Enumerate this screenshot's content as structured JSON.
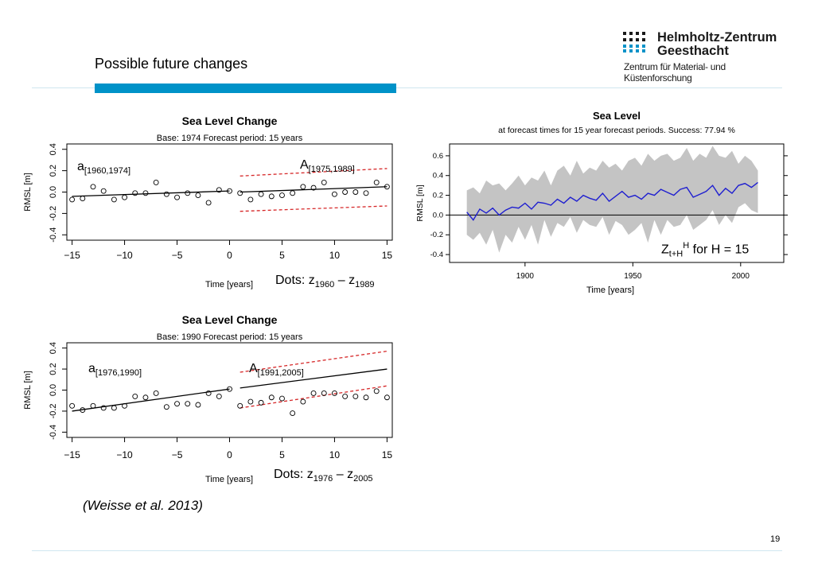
{
  "slide": {
    "title": "Possible future changes",
    "citation": "(Weisse et al. 2013)",
    "page_number": "19"
  },
  "logo": {
    "line1": "Helmholtz-Zentrum",
    "line2": "Geesthacht",
    "line3": "Zentrum für Material- und Küstenforschung",
    "icon": "helmholtz-dots-logo"
  },
  "colors": {
    "accent": "#0092c8",
    "forecast_band": "#d62728",
    "sea_level_line": "#1f1fd0",
    "uncertainty_band": "#c4c4c4"
  },
  "annotations": {
    "chart1_a_main": "a",
    "chart1_a_sub": "[1960,1974]",
    "chart1_A_main": "A",
    "chart1_A_sub": "[1975,1989]",
    "chart1_dots_prefix": "Dots: z",
    "chart1_dots_sub1": "1960",
    "chart1_dots_mid": " – z",
    "chart1_dots_sub2": "1989",
    "chart2_a_main": "a",
    "chart2_a_sub": "[1976,1990]",
    "chart2_A_main": "A",
    "chart2_A_sub": "[1991,2005]",
    "chart2_dots_prefix": "Dots: z",
    "chart2_dots_sub1": "1976",
    "chart2_dots_mid": " – z",
    "chart2_dots_sub2": "2005",
    "chart3_z_main": "Z",
    "chart3_z_sub": "t+H",
    "chart3_z_sup": "H",
    "chart3_z_rest": "  for H = 15"
  },
  "chart_data": [
    {
      "type": "scatter",
      "title": "Sea Level Change",
      "subtitle": "Base: 1974  Forecast period:  15  years",
      "xlabel": "Time [years]",
      "ylabel": "RMSL [m]",
      "xlim": [
        -15.5,
        15.5
      ],
      "ylim": [
        -0.45,
        0.45
      ],
      "xticks": [
        -15,
        -10,
        -5,
        0,
        5,
        10,
        15
      ],
      "yticks": [
        -0.4,
        -0.2,
        0.0,
        0.2,
        0.4
      ],
      "ytick_labels": [
        "-0.4",
        "-0.2",
        "0.0",
        "0.2",
        "0.4"
      ],
      "points_x": [
        -15,
        -14,
        -13,
        -12,
        -11,
        -10,
        -9,
        -8,
        -7,
        -6,
        -5,
        -4,
        -3,
        -2,
        -1,
        0,
        1,
        2,
        3,
        4,
        5,
        6,
        7,
        8,
        9,
        10,
        11,
        12,
        13,
        14,
        15
      ],
      "points_y": [
        -0.07,
        -0.06,
        0.05,
        0.01,
        -0.07,
        -0.05,
        -0.01,
        -0.01,
        0.09,
        -0.02,
        -0.05,
        -0.01,
        -0.03,
        -0.1,
        0.02,
        0.01,
        -0.01,
        -0.07,
        -0.02,
        -0.04,
        -0.03,
        -0.01,
        0.05,
        0.04,
        0.09,
        -0.02,
        0.0,
        0.0,
        -0.01,
        0.09,
        0.05
      ],
      "trend_line": {
        "x": [
          -15,
          0
        ],
        "y": [
          -0.04,
          0.01
        ]
      },
      "forecast_line": {
        "x": [
          1,
          15
        ],
        "y": [
          0.0,
          0.05
        ]
      },
      "forecast_upper": {
        "x": [
          1,
          15
        ],
        "y": [
          0.15,
          0.22
        ]
      },
      "forecast_lower": {
        "x": [
          1,
          15
        ],
        "y": [
          -0.18,
          -0.13
        ]
      }
    },
    {
      "type": "scatter",
      "title": "Sea Level Change",
      "subtitle": "Base: 1990  Forecast period:  15  years",
      "xlabel": "Time [years]",
      "ylabel": "RMSL [m]",
      "xlim": [
        -15.5,
        15.5
      ],
      "ylim": [
        -0.45,
        0.45
      ],
      "xticks": [
        -15,
        -10,
        -5,
        0,
        5,
        10,
        15
      ],
      "yticks": [
        -0.4,
        -0.2,
        0.0,
        0.2,
        0.4
      ],
      "ytick_labels": [
        "-0.4",
        "-0.2",
        "0.0",
        "0.2",
        "0.4"
      ],
      "points_x": [
        -15,
        -14,
        -13,
        -12,
        -11,
        -10,
        -9,
        -8,
        -7,
        -6,
        -5,
        -4,
        -3,
        -2,
        -1,
        0,
        1,
        2,
        3,
        4,
        5,
        6,
        7,
        8,
        9,
        10,
        11,
        12,
        13,
        14,
        15
      ],
      "points_y": [
        -0.15,
        -0.19,
        -0.15,
        -0.17,
        -0.17,
        -0.15,
        -0.06,
        -0.07,
        -0.03,
        -0.16,
        -0.13,
        -0.13,
        -0.14,
        -0.03,
        -0.06,
        0.01,
        -0.15,
        -0.11,
        -0.12,
        -0.07,
        -0.08,
        -0.22,
        -0.11,
        -0.03,
        -0.03,
        -0.03,
        -0.06,
        -0.06,
        -0.07,
        -0.01,
        -0.07
      ],
      "trend_line": {
        "x": [
          -15,
          0
        ],
        "y": [
          -0.2,
          0.01
        ]
      },
      "forecast_line": {
        "x": [
          1,
          15
        ],
        "y": [
          0.02,
          0.2
        ]
      },
      "forecast_upper": {
        "x": [
          1,
          15
        ],
        "y": [
          0.17,
          0.37
        ]
      },
      "forecast_lower": {
        "x": [
          1,
          15
        ],
        "y": [
          -0.17,
          0.04
        ]
      }
    },
    {
      "type": "line",
      "title": "Sea Level",
      "subtitle": "at forecast times for  15  year forecast periods. Success: 77.94 %",
      "xlabel": "Time [years]",
      "ylabel": "RMSL [m]",
      "xlim": [
        1865,
        2020
      ],
      "ylim": [
        -0.48,
        0.72
      ],
      "xticks": [
        1900,
        1950,
        2000
      ],
      "yticks": [
        -0.4,
        -0.2,
        0.0,
        0.2,
        0.4,
        0.6
      ],
      "ytick_labels": [
        "-0.4",
        "-0.2",
        "0.0",
        "0.2",
        "0.4",
        "0.6"
      ],
      "x": [
        1873,
        1876,
        1879,
        1882,
        1885,
        1888,
        1891,
        1894,
        1897,
        1900,
        1903,
        1906,
        1909,
        1912,
        1915,
        1918,
        1921,
        1924,
        1927,
        1930,
        1933,
        1936,
        1939,
        1942,
        1945,
        1948,
        1951,
        1954,
        1957,
        1960,
        1963,
        1966,
        1969,
        1972,
        1975,
        1978,
        1981,
        1984,
        1987,
        1990,
        1993,
        1996,
        1999,
        2002,
        2005,
        2008
      ],
      "y": [
        0.03,
        -0.05,
        0.06,
        0.02,
        0.07,
        0.0,
        0.05,
        0.08,
        0.07,
        0.12,
        0.06,
        0.13,
        0.12,
        0.1,
        0.16,
        0.12,
        0.18,
        0.14,
        0.2,
        0.17,
        0.15,
        0.22,
        0.14,
        0.19,
        0.24,
        0.18,
        0.2,
        0.16,
        0.22,
        0.2,
        0.26,
        0.23,
        0.2,
        0.26,
        0.28,
        0.18,
        0.21,
        0.24,
        0.3,
        0.2,
        0.27,
        0.22,
        0.3,
        0.32,
        0.28,
        0.33
      ],
      "band_upper": [
        0.25,
        0.28,
        0.22,
        0.35,
        0.3,
        0.32,
        0.25,
        0.32,
        0.4,
        0.3,
        0.38,
        0.35,
        0.45,
        0.3,
        0.45,
        0.5,
        0.4,
        0.55,
        0.42,
        0.48,
        0.45,
        0.55,
        0.48,
        0.52,
        0.45,
        0.55,
        0.58,
        0.5,
        0.62,
        0.55,
        0.6,
        0.62,
        0.55,
        0.58,
        0.68,
        0.55,
        0.62,
        0.58,
        0.7,
        0.6,
        0.58,
        0.65,
        0.52,
        0.6,
        0.55,
        0.45
      ],
      "band_lower": [
        -0.2,
        -0.25,
        -0.18,
        -0.3,
        -0.15,
        -0.38,
        -0.2,
        -0.28,
        -0.12,
        -0.25,
        -0.1,
        -0.3,
        -0.05,
        -0.22,
        -0.08,
        -0.12,
        -0.02,
        -0.18,
        -0.05,
        -0.1,
        -0.12,
        -0.02,
        -0.2,
        -0.06,
        -0.1,
        -0.2,
        -0.15,
        -0.08,
        -0.28,
        -0.05,
        -0.2,
        -0.05,
        -0.12,
        -0.1,
        0.0,
        -0.15,
        -0.1,
        -0.05,
        0.05,
        -0.1,
        0.0,
        -0.08,
        0.08,
        0.12,
        0.05,
        0.02
      ],
      "hline": 0.0
    }
  ]
}
